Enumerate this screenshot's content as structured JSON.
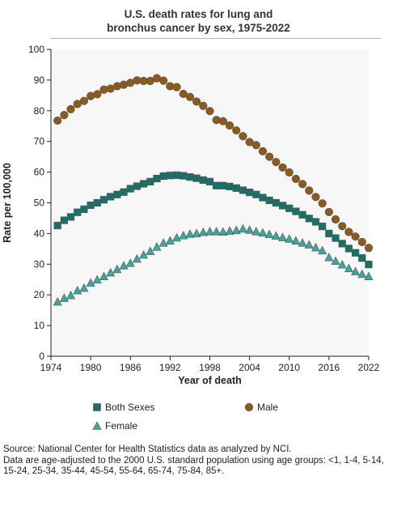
{
  "title": "U.S. death rates for lung and bronchus cancer by sex, 1975-2022",
  "chart_data": {
    "type": "scatter",
    "title": "U.S. death rates for lung and bronchus cancer by sex, 1975-2022",
    "xlabel": "Year of death",
    "ylabel": "Rate per 100,000",
    "xlim": [
      1974,
      2022
    ],
    "ylim": [
      0,
      100
    ],
    "xticks": [
      1974,
      1980,
      1986,
      1992,
      1998,
      2004,
      2010,
      2016,
      2022
    ],
    "yticks": [
      0,
      10,
      20,
      30,
      40,
      50,
      60,
      70,
      80,
      90,
      100
    ],
    "grid": false,
    "legend_position": "bottom",
    "x": [
      1975,
      1976,
      1977,
      1978,
      1979,
      1980,
      1981,
      1982,
      1983,
      1984,
      1985,
      1986,
      1987,
      1988,
      1989,
      1990,
      1991,
      1992,
      1993,
      1994,
      1995,
      1996,
      1997,
      1998,
      1999,
      2000,
      2001,
      2002,
      2003,
      2004,
      2005,
      2006,
      2007,
      2008,
      2009,
      2010,
      2011,
      2012,
      2013,
      2014,
      2015,
      2016,
      2017,
      2018,
      2019,
      2020,
      2021,
      2022
    ],
    "series": [
      {
        "name": "Male",
        "marker": "circle",
        "color": "#8B5A1F",
        "values": [
          76.8,
          78.6,
          80.5,
          82.2,
          83.2,
          84.8,
          85.4,
          86.9,
          87.2,
          88.0,
          88.5,
          89.1,
          89.9,
          89.7,
          89.7,
          90.6,
          89.8,
          88.0,
          87.7,
          85.5,
          84.5,
          83.0,
          81.6,
          79.9,
          77.0,
          76.6,
          75.2,
          73.6,
          71.7,
          69.8,
          68.8,
          66.8,
          65.0,
          63.3,
          61.5,
          59.9,
          57.8,
          56.1,
          54.0,
          51.9,
          49.8,
          47.0,
          44.6,
          42.4,
          40.5,
          39.0,
          37.2,
          35.3
        ]
      },
      {
        "name": "Both Sexes",
        "marker": "square",
        "color": "#1E6E68",
        "values": [
          42.6,
          44.3,
          45.4,
          46.9,
          47.9,
          49.2,
          50.0,
          51.0,
          52.0,
          52.7,
          53.5,
          54.6,
          55.4,
          56.2,
          56.9,
          57.9,
          58.7,
          58.9,
          59.0,
          58.8,
          58.4,
          58.0,
          57.4,
          56.9,
          55.6,
          55.6,
          55.3,
          54.8,
          54.1,
          53.4,
          52.7,
          51.7,
          50.8,
          50.0,
          49.1,
          48.2,
          47.2,
          46.1,
          44.9,
          43.8,
          42.3,
          40.0,
          38.5,
          36.7,
          35.1,
          33.7,
          32.0,
          29.9
        ]
      },
      {
        "name": "Female",
        "marker": "triangle",
        "color": "#3FA59E",
        "values": [
          17.7,
          18.9,
          19.8,
          21.4,
          22.2,
          23.9,
          24.9,
          26.0,
          27.2,
          28.3,
          29.5,
          30.3,
          31.7,
          33.0,
          34.2,
          35.6,
          36.9,
          37.6,
          38.6,
          39.3,
          39.8,
          40.0,
          40.4,
          40.6,
          40.6,
          40.5,
          40.8,
          41.0,
          41.5,
          41.1,
          40.6,
          40.2,
          39.7,
          39.2,
          38.7,
          38.2,
          37.6,
          36.9,
          36.3,
          35.4,
          34.4,
          32.2,
          31.0,
          29.8,
          28.6,
          27.6,
          26.7,
          26.0
        ]
      }
    ]
  },
  "legend": [
    {
      "label": "Both Sexes",
      "marker": "square",
      "color": "#1E6E68"
    },
    {
      "label": "Male",
      "marker": "circle",
      "color": "#8B5A1F"
    },
    {
      "label": "Female",
      "marker": "triangle",
      "color": "#3FA59E"
    }
  ],
  "source": "Source: National Center for Health Statistics data as analyzed by NCI.",
  "note": "Data are age-adjusted to the 2000 U.S. standard population using age groups: <1, 1-4, 5-14, 15-24, 25-34, 35-44, 45-54, 55-64, 65-74, 75-84, 85+."
}
